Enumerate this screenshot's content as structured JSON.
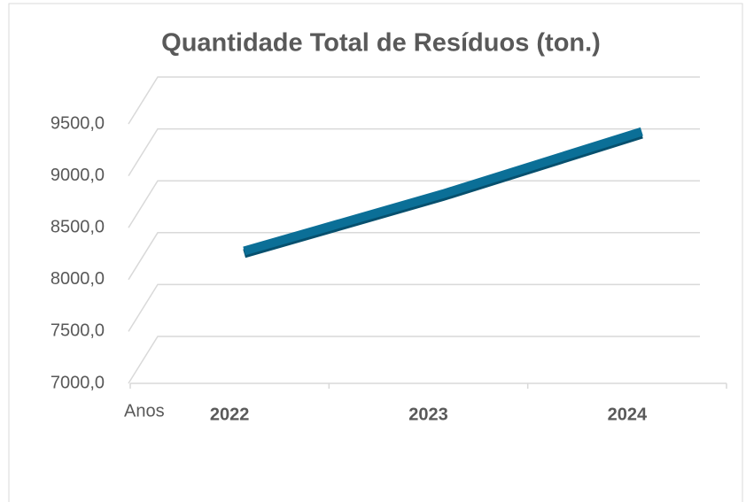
{
  "chart_data": {
    "type": "line",
    "title": "Quantidade Total de Resíduos (ton.)",
    "x_label": "Anos",
    "categories": [
      "2022",
      "2023",
      "2024"
    ],
    "values": [
      8050,
      8600,
      9200
    ],
    "color": "#0b6f97",
    "ylim": [
      7000,
      9500
    ],
    "yticks": [
      {
        "value": 7000,
        "label": "7000,0"
      },
      {
        "value": 7500,
        "label": "7500,0"
      },
      {
        "value": 8000,
        "label": "8000,0"
      },
      {
        "value": 8500,
        "label": "8500,0"
      },
      {
        "value": 9000,
        "label": "9000,0"
      },
      {
        "value": 9500,
        "label": "9500,0"
      }
    ],
    "grid": true
  }
}
